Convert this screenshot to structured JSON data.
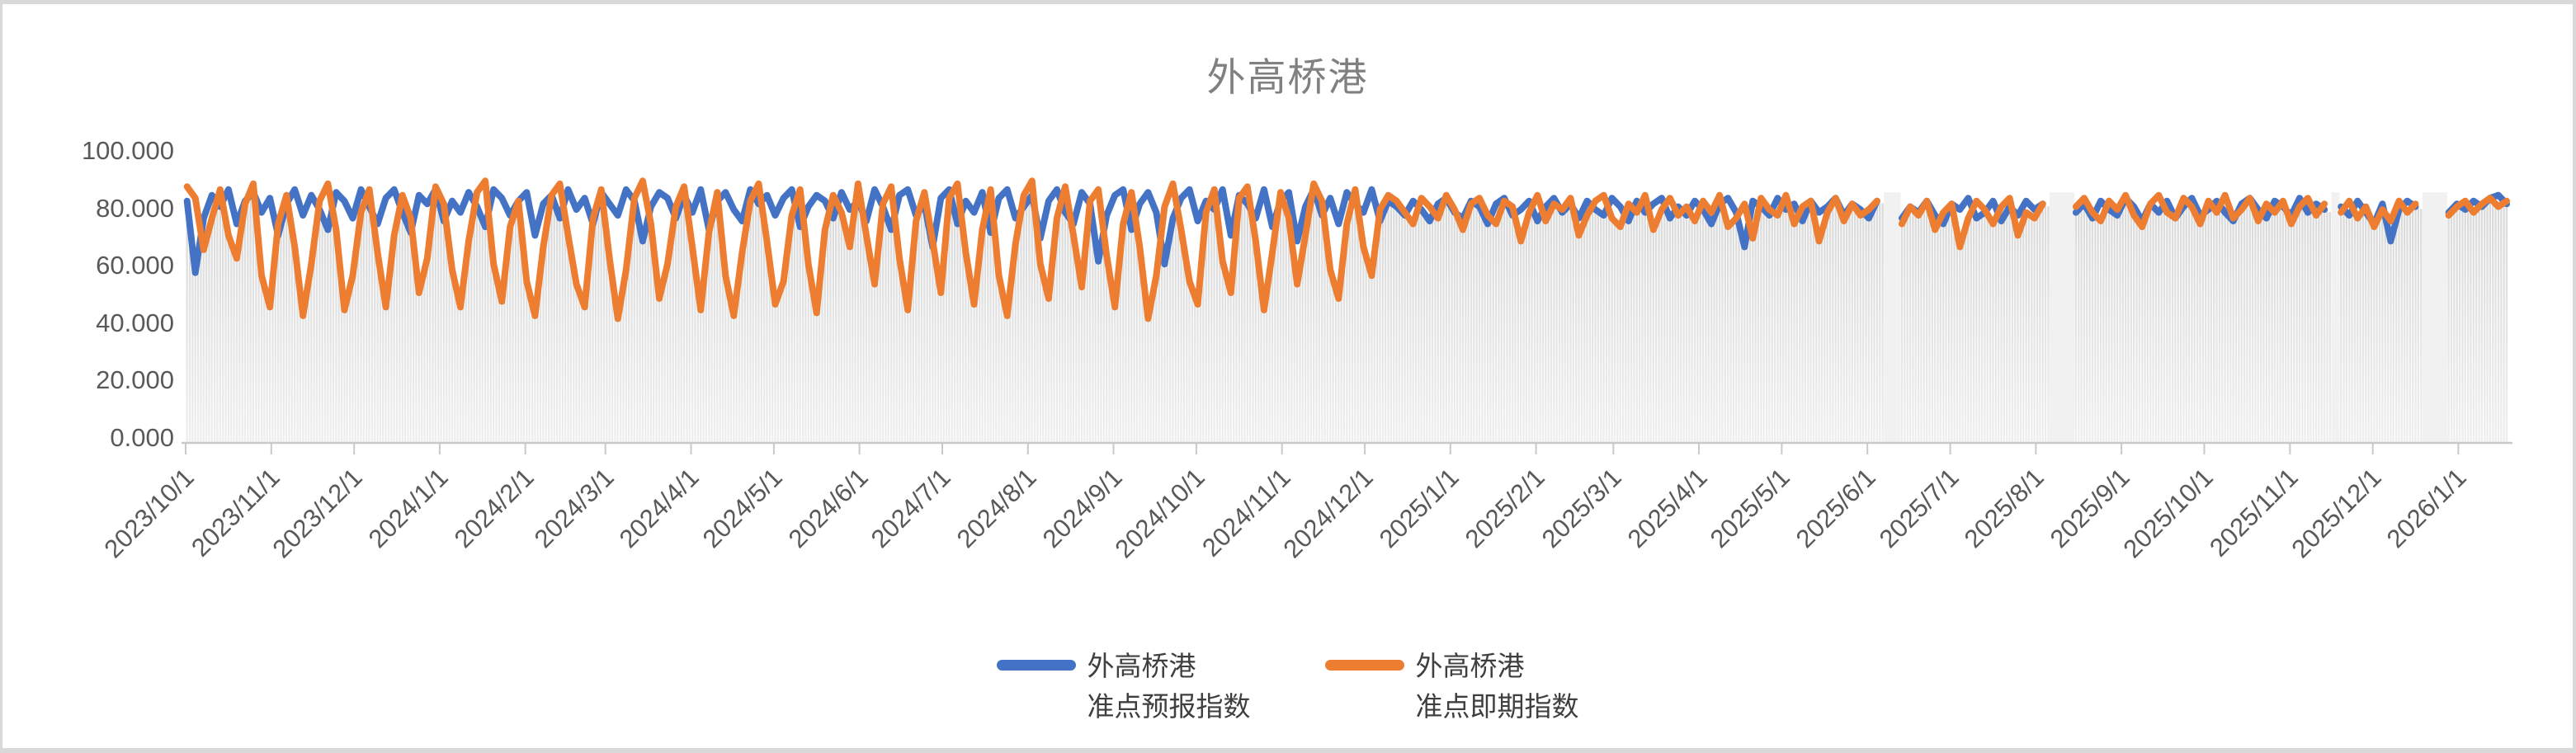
{
  "frame": {
    "outer_background": "#d9d9d9",
    "surface": "#ffffff"
  },
  "chart_data": {
    "type": "line",
    "title": "外高桥港",
    "title_color": "#808080",
    "legend_position": "bottom",
    "grid": "off",
    "sample_step_days": 3,
    "sampling_note": "daily index values estimated from pixels at 3-day resolution; null = visible data gap",
    "y_axis": {
      "min": 0,
      "max": 100,
      "tick_step": 20,
      "ticks": [
        "0.000",
        "20.000",
        "40.000",
        "60.000",
        "80.000",
        "100.000"
      ],
      "label_color": "#595959"
    },
    "x_axis": {
      "start_date": "2023/10/1",
      "end_date_approx": "2026/1/18",
      "label_rotation_deg": 45,
      "label_color": "#595959",
      "axis_color": "#c9c9c9",
      "tick_labels": [
        "2023/10/1",
        "2023/11/1",
        "2023/12/1",
        "2024/1/1",
        "2024/2/1",
        "2024/3/1",
        "2024/4/1",
        "2024/5/1",
        "2024/6/1",
        "2024/7/1",
        "2024/8/1",
        "2024/9/1",
        "2024/10/1",
        "2024/11/1",
        "2024/12/1",
        "2025/1/1",
        "2025/2/1",
        "2025/3/1",
        "2025/4/1",
        "2025/5/1",
        "2025/6/1",
        "2025/7/1",
        "2025/8/1",
        "2025/9/1",
        "2025/10/1",
        "2025/11/1",
        "2025/12/1",
        "2026/1/1"
      ]
    },
    "background_bars": {
      "description": "one light-gray column per day, top follows the lower of the two lines",
      "color_top": "#d7d7d7",
      "color_bottom": "#eeeeee",
      "gap_band_color": "#f1f1f1"
    },
    "data_gaps": [
      {
        "from": "2025/6/8",
        "to": "2025/6/11"
      },
      {
        "from": "2025/8/5",
        "to": "2025/8/13"
      },
      {
        "from": "2025/11/17",
        "to": "2025/11/18"
      },
      {
        "from": "2025/12/18",
        "to": "2025/12/27"
      }
    ],
    "series": [
      {
        "name": "外高桥港准点预报指数",
        "legend_line1": "外高桥港",
        "legend_line2": "准点预报指数",
        "color": "#4472C4",
        "values": [
          84,
          59,
          78,
          86,
          82,
          88,
          76,
          84,
          87,
          80,
          85,
          72,
          83,
          88,
          79,
          86,
          81,
          74,
          87,
          84,
          78,
          88,
          82,
          76,
          85,
          88,
          80,
          73,
          86,
          83,
          88,
          77,
          84,
          80,
          87,
          82,
          75,
          88,
          85,
          79,
          84,
          87,
          72,
          83,
          86,
          78,
          88,
          81,
          85,
          76,
          87,
          83,
          79,
          88,
          84,
          70,
          82,
          87,
          85,
          78,
          86,
          80,
          88,
          74,
          84,
          87,
          81,
          77,
          88,
          83,
          86,
          79,
          85,
          88,
          75,
          82,
          86,
          84,
          78,
          87,
          81,
          84,
          77,
          88,
          82,
          74,
          86,
          88,
          79,
          83,
          68,
          85,
          88,
          76,
          84,
          80,
          87,
          73,
          85,
          88,
          78,
          82,
          86,
          71,
          84,
          88,
          80,
          76,
          87,
          83,
          63,
          79,
          86,
          88,
          74,
          83,
          87,
          80,
          62,
          78,
          85,
          88,
          77,
          84,
          81,
          88,
          72,
          86,
          83,
          78,
          88,
          75,
          84,
          87,
          70,
          82,
          88,
          79,
          85,
          76,
          87,
          83,
          80,
          88,
          77,
          84,
          82,
          79,
          84,
          81,
          77,
          83,
          85,
          80,
          78,
          84,
          82,
          76,
          83,
          85,
          79,
          81,
          84,
          77,
          82,
          85,
          80,
          83,
          78,
          84,
          81,
          79,
          85,
          82,
          77,
          84,
          80,
          83,
          85,
          78,
          82,
          79,
          84,
          81,
          76,
          83,
          85,
          80,
          68,
          84,
          82,
          79,
          85,
          81,
          83,
          77,
          84,
          80,
          82,
          85,
          79,
          83,
          81,
          78,
          84,
          null,
          null,
          78,
          82,
          80,
          84,
          79,
          76,
          83,
          81,
          85,
          78,
          80,
          84,
          77,
          82,
          79,
          84,
          81,
          83,
          null,
          null,
          null,
          80,
          83,
          78,
          84,
          81,
          79,
          85,
          82,
          77,
          83,
          80,
          84,
          78,
          82,
          85,
          79,
          81,
          84,
          80,
          77,
          83,
          85,
          81,
          78,
          84,
          82,
          79,
          85,
          80,
          83,
          81,
          null,
          82,
          79,
          84,
          80,
          76,
          83,
          70,
          81,
          84,
          82,
          null,
          null,
          null,
          80,
          83,
          81,
          84,
          82,
          85,
          86,
          83
        ]
      },
      {
        "name": "外高桥港准点即期指数",
        "legend_line1": "外高桥港",
        "legend_line2": "准点即期指数",
        "color": "#ED7D31",
        "values": [
          89,
          85,
          67,
          78,
          88,
          72,
          64,
          83,
          90,
          58,
          47,
          76,
          86,
          68,
          44,
          62,
          84,
          90,
          74,
          46,
          58,
          80,
          88,
          66,
          47,
          72,
          86,
          78,
          52,
          64,
          89,
          83,
          60,
          47,
          70,
          87,
          91,
          62,
          49,
          75,
          84,
          56,
          44,
          68,
          86,
          90,
          72,
          55,
          47,
          78,
          88,
          64,
          43,
          60,
          85,
          91,
          76,
          50,
          62,
          82,
          89,
          68,
          46,
          73,
          87,
          58,
          44,
          66,
          84,
          90,
          70,
          48,
          56,
          79,
          88,
          62,
          45,
          74,
          86,
          80,
          68,
          90,
          72,
          55,
          83,
          89,
          64,
          46,
          77,
          87,
          70,
          52,
          85,
          90,
          66,
          48,
          74,
          88,
          58,
          44,
          69,
          86,
          91,
          62,
          50,
          78,
          89,
          72,
          54,
          84,
          88,
          65,
          47,
          76,
          87,
          68,
          43,
          58,
          82,
          90,
          74,
          56,
          48,
          80,
          88,
          63,
          52,
          85,
          89,
          70,
          46,
          66,
          87,
          78,
          55,
          72,
          90,
          84,
          60,
          50,
          76,
          88,
          68,
          58,
          81,
          86,
          84,
          80,
          76,
          85,
          82,
          78,
          86,
          81,
          74,
          83,
          85,
          79,
          76,
          84,
          82,
          70,
          80,
          86,
          77,
          83,
          81,
          85,
          72,
          79,
          84,
          86,
          78,
          75,
          83,
          80,
          86,
          74,
          81,
          85,
          79,
          82,
          77,
          84,
          80,
          86,
          75,
          78,
          83,
          71,
          85,
          81,
          79,
          86,
          76,
          82,
          84,
          70,
          80,
          85,
          77,
          83,
          79,
          81,
          84,
          null,
          null,
          76,
          82,
          79,
          84,
          74,
          80,
          83,
          68,
          78,
          84,
          81,
          76,
          82,
          85,
          72,
          80,
          78,
          83,
          null,
          null,
          null,
          82,
          85,
          80,
          77,
          84,
          81,
          86,
          79,
          75,
          83,
          86,
          80,
          78,
          85,
          82,
          76,
          84,
          80,
          86,
          78,
          81,
          85,
          77,
          83,
          80,
          84,
          76,
          82,
          85,
          79,
          83,
          null,
          80,
          84,
          78,
          82,
          75,
          81,
          77,
          84,
          80,
          83,
          null,
          null,
          null,
          79,
          82,
          84,
          80,
          83,
          85,
          82,
          84
        ]
      }
    ]
  }
}
